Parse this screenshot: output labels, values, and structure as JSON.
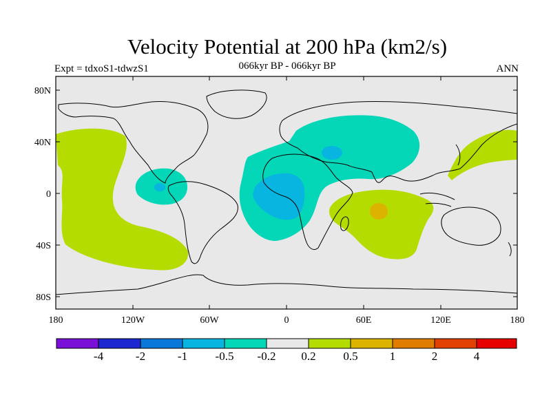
{
  "title": "Velocity Potential at 200 hPa (km2/s)",
  "left_label": "Expt = tdxoS1-tdwzS1",
  "center_label": "066kyr BP - 066kyr BP",
  "right_label": "ANN",
  "lat_ticks": [
    "80N",
    "40N",
    "0",
    "40S",
    "80S"
  ],
  "lon_ticks": [
    "180",
    "120W",
    "60W",
    "0",
    "60E",
    "120E",
    "180"
  ],
  "colorbar": {
    "colors": [
      "#7a10d8",
      "#1e28d0",
      "#0a78d8",
      "#08b4e0",
      "#04d6b8",
      "#e8e8e8",
      "#b4dc00",
      "#dcb400",
      "#e07c00",
      "#e04000",
      "#e60000"
    ],
    "labels": [
      "-4",
      "-2",
      "-1",
      "-0.5",
      "-0.2",
      "0.2",
      "0.5",
      "1",
      "2",
      "4"
    ]
  },
  "colors": {
    "background": "#e8e8e8",
    "positive_weak": "#b4dc00",
    "positive_mid": "#dcb400",
    "negative_weak": "#04d6b8",
    "negative_mid": "#08b4e0"
  }
}
